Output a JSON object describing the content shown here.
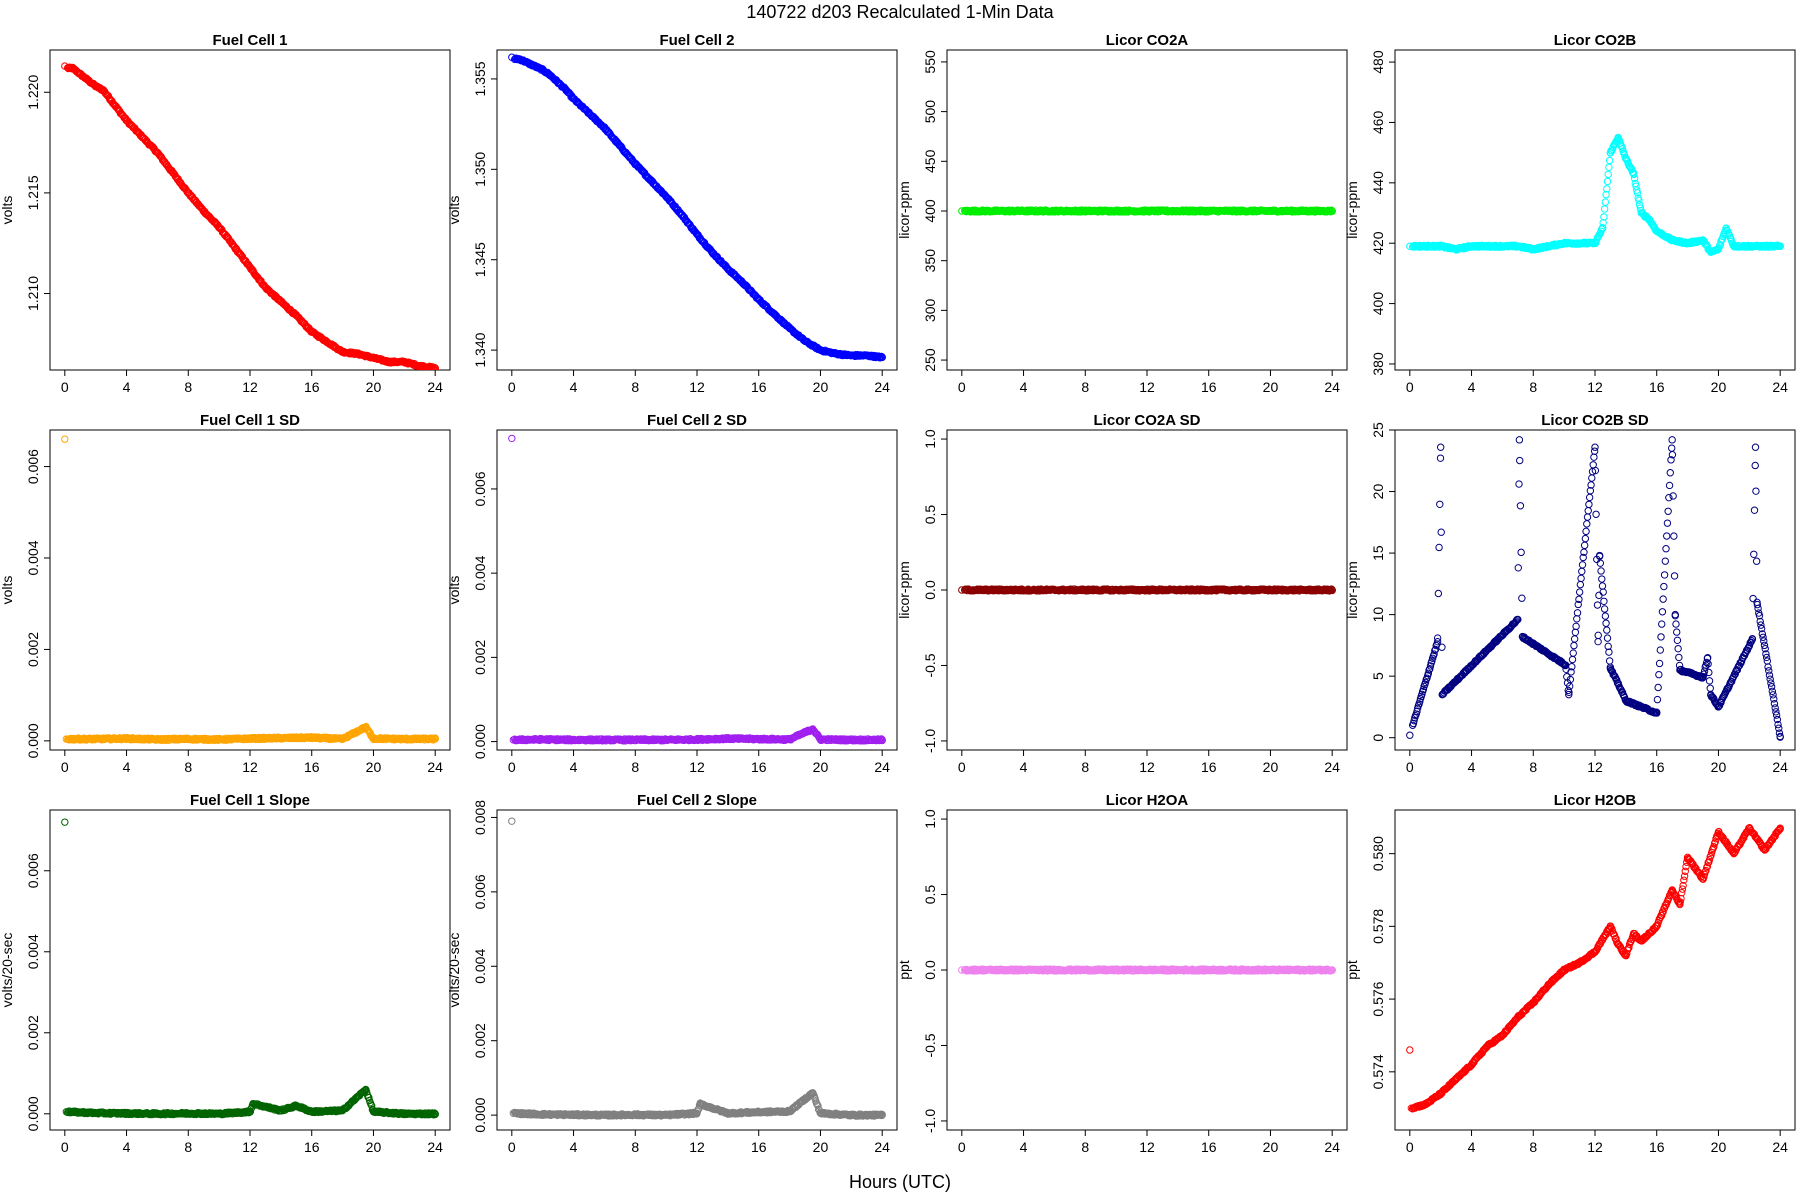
{
  "figure": {
    "title": "140722    d203    Recalculated 1-Min Data",
    "xlabel": "Hours (UTC)"
  },
  "chart_data": [
    {
      "id": "fc1",
      "type": "scatter",
      "title": "Fuel Cell 1",
      "ylabel": "volts",
      "color": "#ff0000",
      "xlim": [
        0,
        24
      ],
      "ylim": [
        1.2062,
        1.2221
      ],
      "x_ticks": [
        0,
        4,
        8,
        12,
        16,
        20,
        24
      ],
      "y_ticks": [
        1.21,
        1.215,
        1.22
      ],
      "y_tick_labels": [
        "1.210",
        "1.215",
        "1.220"
      ],
      "series": [
        {
          "x": [
            0,
            0.5,
            1,
            1.5,
            2,
            2.5,
            3,
            3.5,
            4,
            5,
            6,
            7,
            8,
            9,
            10,
            11,
            12,
            13,
            14,
            15,
            16,
            17,
            18,
            19,
            20,
            21,
            22,
            23,
            24
          ],
          "y": [
            1.2213,
            1.2212,
            1.2209,
            1.2206,
            1.2203,
            1.2201,
            1.2196,
            1.2191,
            1.2186,
            1.2178,
            1.217,
            1.216,
            1.215,
            1.2141,
            1.2133,
            1.2123,
            1.2113,
            1.2103,
            1.2096,
            1.2089,
            1.2081,
            1.2076,
            1.2071,
            1.207,
            1.2068,
            1.2066,
            1.2066,
            1.2064,
            1.2063
          ]
        }
      ]
    },
    {
      "id": "fc2",
      "type": "scatter",
      "title": "Fuel Cell 2",
      "ylabel": "volts",
      "color": "#0000ff",
      "xlim": [
        0,
        24
      ],
      "ylim": [
        1.3389,
        1.3566
      ],
      "x_ticks": [
        0,
        4,
        8,
        12,
        16,
        20,
        24
      ],
      "y_ticks": [
        1.34,
        1.345,
        1.35,
        1.355
      ],
      "y_tick_labels": [
        "1.340",
        "1.345",
        "1.350",
        "1.355"
      ],
      "series": [
        {
          "x": [
            0,
            0.5,
            1,
            1.5,
            2,
            2.5,
            3,
            3.5,
            4,
            5,
            6,
            7,
            8,
            9,
            10,
            11,
            12,
            13,
            14,
            15,
            16,
            17,
            18,
            19,
            20,
            21,
            22,
            23,
            24
          ],
          "y": [
            1.3562,
            1.3561,
            1.3559,
            1.3557,
            1.3555,
            1.3552,
            1.3548,
            1.3544,
            1.3539,
            1.3531,
            1.3523,
            1.3513,
            1.3503,
            1.3494,
            1.3485,
            1.3475,
            1.3464,
            1.3454,
            1.3445,
            1.3437,
            1.3428,
            1.342,
            1.3412,
            1.3405,
            1.34,
            1.3398,
            1.3397,
            1.3397,
            1.3396
          ]
        }
      ]
    },
    {
      "id": "co2a",
      "type": "scatter",
      "title": "Licor CO2A",
      "ylabel": "licor-ppm",
      "color": "#00ee00",
      "xlim": [
        0,
        24
      ],
      "ylim": [
        240,
        562
      ],
      "x_ticks": [
        0,
        4,
        8,
        12,
        16,
        20,
        24
      ],
      "y_ticks": [
        250,
        300,
        350,
        400,
        450,
        500,
        550
      ],
      "y_tick_labels": [
        "250",
        "300",
        "350",
        "400",
        "450",
        "500",
        "550"
      ],
      "series": [
        {
          "x": [
            0,
            2,
            4,
            6,
            8,
            10,
            12,
            14,
            16,
            18,
            20,
            22,
            24
          ],
          "y": [
            400,
            400,
            400,
            400,
            400,
            400,
            400,
            400,
            400,
            400,
            400,
            400,
            400
          ]
        }
      ]
    },
    {
      "id": "co2b",
      "type": "scatter",
      "title": "Licor CO2B",
      "ylabel": "licor-ppm",
      "color": "#00ffff",
      "xlim": [
        0,
        24
      ],
      "ylim": [
        378,
        484
      ],
      "x_ticks": [
        0,
        4,
        8,
        12,
        16,
        20,
        24
      ],
      "y_ticks": [
        380,
        400,
        420,
        440,
        460,
        480
      ],
      "y_tick_labels": [
        "380",
        "400",
        "420",
        "440",
        "460",
        "480"
      ],
      "series": [
        {
          "x": [
            0,
            1,
            2,
            3,
            4,
            5,
            6,
            7,
            8,
            9,
            10,
            11,
            12,
            12.5,
            13,
            13.5,
            14,
            14.5,
            15,
            15.5,
            16,
            17,
            18,
            19,
            19.5,
            20,
            20.5,
            21,
            22,
            23,
            24
          ],
          "y": [
            419,
            419,
            419,
            418,
            419,
            419,
            419,
            419,
            418,
            419,
            420,
            420,
            420,
            425,
            450,
            455,
            448,
            443,
            430,
            428,
            424,
            421,
            420,
            421,
            417,
            418,
            425,
            419,
            419,
            419,
            419
          ]
        }
      ]
    },
    {
      "id": "fc1sd",
      "type": "scatter",
      "title": "Fuel Cell 1 SD",
      "ylabel": "volts",
      "color": "#ffa500",
      "xlim": [
        0,
        24
      ],
      "ylim": [
        -0.0002,
        0.0068
      ],
      "x_ticks": [
        0,
        4,
        8,
        12,
        16,
        20,
        24
      ],
      "y_ticks": [
        0,
        0.002,
        0.004,
        0.006
      ],
      "y_tick_labels": [
        "0.000",
        "0.002",
        "0.004",
        "0.006"
      ],
      "series": [
        {
          "x": [
            0,
            0.1,
            2,
            4,
            6,
            8,
            10,
            12,
            14,
            16,
            18,
            19.5,
            20,
            22,
            24
          ],
          "y": [
            0.0066,
            4e-05,
            4e-05,
            5e-05,
            3e-05,
            4e-05,
            3e-05,
            5e-05,
            6e-05,
            7e-05,
            4e-05,
            0.0003,
            5e-05,
            4e-05,
            4e-05
          ]
        }
      ]
    },
    {
      "id": "fc2sd",
      "type": "scatter",
      "title": "Fuel Cell 2 SD",
      "ylabel": "volts",
      "color": "#a020f0",
      "xlim": [
        0,
        24
      ],
      "ylim": [
        -0.0002,
        0.0074
      ],
      "x_ticks": [
        0,
        4,
        8,
        12,
        16,
        20,
        24
      ],
      "y_ticks": [
        0,
        0.002,
        0.004,
        0.006
      ],
      "y_tick_labels": [
        "0.000",
        "0.002",
        "0.004",
        "0.006"
      ],
      "series": [
        {
          "x": [
            0,
            0.1,
            2,
            4,
            6,
            8,
            10,
            12,
            14,
            16,
            18,
            19.5,
            20,
            22,
            24
          ],
          "y": [
            0.0072,
            4e-05,
            5e-05,
            4e-05,
            4e-05,
            4e-05,
            4e-05,
            5e-05,
            7e-05,
            6e-05,
            5e-05,
            0.0003,
            5e-05,
            4e-05,
            4e-05
          ]
        }
      ]
    },
    {
      "id": "co2asd",
      "type": "scatter",
      "title": "Licor CO2A SD",
      "ylabel": "licor-ppm",
      "color": "#8b0000",
      "xlim": [
        0,
        24
      ],
      "ylim": [
        -1.06,
        1.06
      ],
      "x_ticks": [
        0,
        4,
        8,
        12,
        16,
        20,
        24
      ],
      "y_ticks": [
        -1,
        -0.5,
        0,
        0.5,
        1
      ],
      "y_tick_labels": [
        "-1.0",
        "-0.5",
        "0.0",
        "0.5",
        "1.0"
      ],
      "series": [
        {
          "x": [
            0,
            2,
            4,
            6,
            8,
            10,
            12,
            14,
            16,
            18,
            20,
            22,
            24
          ],
          "y": [
            0,
            0,
            0,
            0,
            0,
            0,
            0,
            0,
            0,
            0,
            0,
            0,
            0
          ]
        }
      ]
    },
    {
      "id": "co2bsd",
      "type": "scatter",
      "title": "Licor CO2B SD",
      "ylabel": "licor-ppm",
      "color": "#000080",
      "xlim": [
        0,
        24
      ],
      "ylim": [
        -1,
        25
      ],
      "x_ticks": [
        0,
        4,
        8,
        12,
        16,
        20,
        24
      ],
      "y_ticks": [
        0,
        5,
        10,
        15,
        20,
        25
      ],
      "y_tick_labels": [
        "0",
        "5",
        "10",
        "15",
        "20",
        "25"
      ],
      "series": [
        {
          "x": [
            0,
            1.8,
            2,
            2.1,
            7,
            7.1,
            7.3,
            10.1,
            10.3,
            12,
            12.2,
            12.3,
            13,
            13.5,
            14,
            15,
            16,
            17,
            17.2,
            17.5,
            19,
            19.3,
            19.5,
            20,
            22.2,
            22.4,
            22.5,
            24
          ],
          "y": [
            0.2,
            7.8,
            23.6,
            3.5,
            9.6,
            24.2,
            8.2,
            5.9,
            3.5,
            23.6,
            7.8,
            14.8,
            5.6,
            4.4,
            3.0,
            2.5,
            2.0,
            24.2,
            10.0,
            5.5,
            4.9,
            6.5,
            3.5,
            2.5,
            8.0,
            23.6,
            11.0,
            0.1
          ]
        }
      ]
    },
    {
      "id": "fc1slope",
      "type": "scatter",
      "title": "Fuel Cell 1 Slope",
      "ylabel": "volts/20-sec",
      "color": "#006400",
      "xlim": [
        0,
        24
      ],
      "ylim": [
        -0.0004,
        0.0075
      ],
      "x_ticks": [
        0,
        4,
        8,
        12,
        16,
        20,
        24
      ],
      "y_ticks": [
        0,
        0.002,
        0.004,
        0.006
      ],
      "y_tick_labels": [
        "0.000",
        "0.002",
        "0.004",
        "0.006"
      ],
      "series": [
        {
          "x": [
            0,
            0.1,
            2,
            4,
            6,
            8,
            10,
            12,
            12.2,
            14,
            15,
            16,
            18,
            19.5,
            20,
            22,
            24
          ],
          "y": [
            0.0072,
            5e-05,
            2e-05,
            1e-05,
            0.0,
            1e-05,
            0.0,
            5e-05,
            0.00025,
            8e-05,
            0.0002,
            5e-05,
            8e-05,
            0.0006,
            5e-05,
            0.0,
            0.0
          ]
        }
      ]
    },
    {
      "id": "fc2slope",
      "type": "scatter",
      "title": "Fuel Cell 2 Slope",
      "ylabel": "volts/20-sec",
      "color": "#808080",
      "xlim": [
        0,
        24
      ],
      "ylim": [
        -0.0004,
        0.0082
      ],
      "x_ticks": [
        0,
        4,
        8,
        12,
        16,
        20,
        24
      ],
      "y_ticks": [
        0,
        0.002,
        0.004,
        0.006,
        0.008
      ],
      "y_tick_labels": [
        "0.000",
        "0.002",
        "0.004",
        "0.006",
        "0.008"
      ],
      "series": [
        {
          "x": [
            0,
            0.1,
            2,
            4,
            6,
            8,
            10,
            12,
            12.2,
            14,
            16,
            18,
            19.5,
            20,
            22,
            24
          ],
          "y": [
            0.0079,
            5e-05,
            2e-05,
            1e-05,
            0.0,
            1e-05,
            0.0,
            5e-05,
            0.0003,
            5e-05,
            8e-05,
            0.0001,
            0.0006,
            5e-05,
            0.0,
            0.0
          ]
        }
      ]
    },
    {
      "id": "h2oa",
      "type": "scatter",
      "title": "Licor H2OA",
      "ylabel": "ppt",
      "color": "#ee82ee",
      "xlim": [
        0,
        24
      ],
      "ylim": [
        -1.06,
        1.06
      ],
      "x_ticks": [
        0,
        4,
        8,
        12,
        16,
        20,
        24
      ],
      "y_ticks": [
        -1,
        -0.5,
        0,
        0.5,
        1
      ],
      "y_tick_labels": [
        "-1.0",
        "-0.5",
        "0.0",
        "0.5",
        "1.0"
      ],
      "series": [
        {
          "x": [
            0,
            2,
            4,
            6,
            8,
            10,
            12,
            14,
            16,
            18,
            20,
            22,
            24
          ],
          "y": [
            0,
            0,
            0,
            0,
            0,
            0,
            0,
            0,
            0,
            0,
            0,
            0,
            0
          ]
        }
      ]
    },
    {
      "id": "h2ob",
      "type": "scatter",
      "title": "Licor H2OB",
      "ylabel": "ppt",
      "color": "#ff0000",
      "xlim": [
        0,
        24
      ],
      "ylim": [
        0.5724,
        0.5812
      ],
      "x_ticks": [
        0,
        4,
        8,
        12,
        16,
        20,
        24
      ],
      "y_ticks": [
        0.574,
        0.576,
        0.578,
        0.58
      ],
      "y_tick_labels": [
        "0.574",
        "0.576",
        "0.578",
        "0.580"
      ],
      "series": [
        {
          "x": [
            0,
            0.1,
            1,
            2,
            3,
            4,
            5,
            6,
            7,
            8,
            9,
            10,
            11,
            12,
            13,
            13.5,
            14,
            14.5,
            15,
            16,
            17,
            17.5,
            18,
            19,
            20,
            21,
            22,
            23,
            24
          ],
          "y": [
            0.5746,
            0.573,
            0.5731,
            0.5734,
            0.5738,
            0.5742,
            0.5747,
            0.575,
            0.5755,
            0.5759,
            0.5764,
            0.5768,
            0.577,
            0.5773,
            0.578,
            0.5775,
            0.5772,
            0.5778,
            0.5776,
            0.578,
            0.579,
            0.5786,
            0.5799,
            0.5793,
            0.5806,
            0.58,
            0.5807,
            0.5801,
            0.5807
          ]
        }
      ]
    }
  ]
}
